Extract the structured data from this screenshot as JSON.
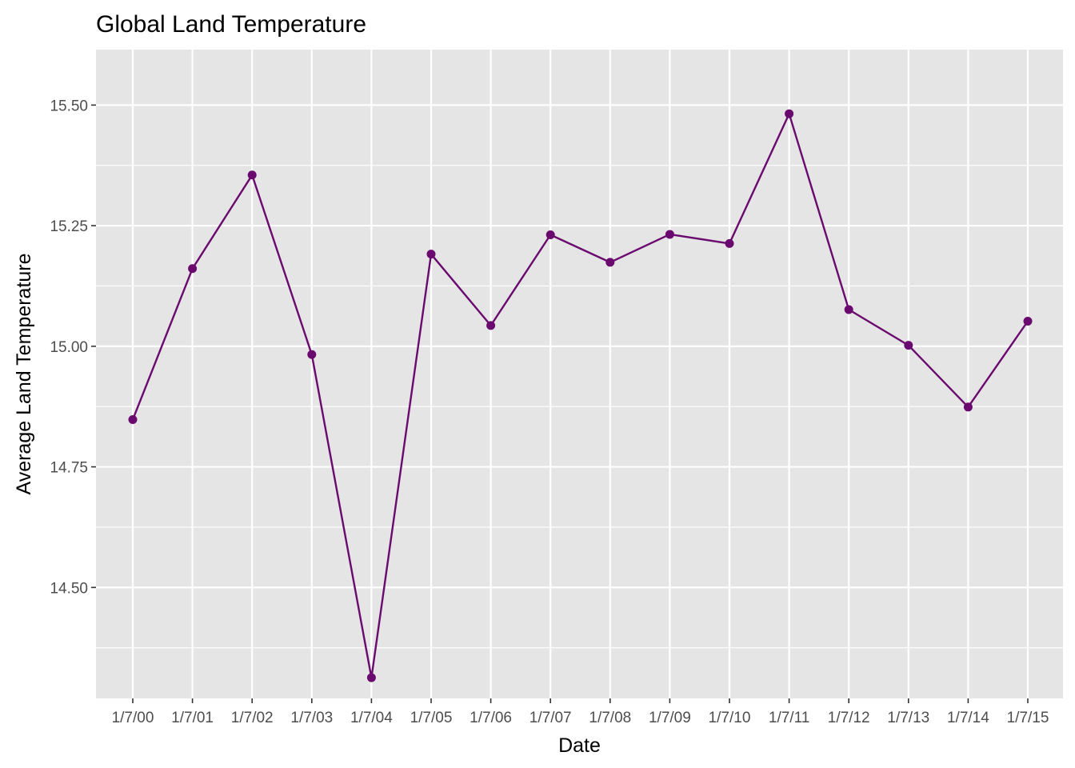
{
  "chart_data": {
    "type": "line",
    "title": "Global Land Temperature",
    "xlabel": "Date",
    "ylabel": "Average Land Temperature",
    "categories": [
      "1/7/00",
      "1/7/01",
      "1/7/02",
      "1/7/03",
      "1/7/04",
      "1/7/05",
      "1/7/06",
      "1/7/07",
      "1/7/08",
      "1/7/09",
      "1/7/10",
      "1/7/11",
      "1/7/12",
      "1/7/13",
      "1/7/14",
      "1/7/15"
    ],
    "values": [
      14.848,
      15.161,
      15.355,
      14.983,
      14.313,
      15.191,
      15.043,
      15.231,
      15.174,
      15.232,
      15.213,
      15.482,
      15.076,
      15.002,
      14.874,
      15.052
    ],
    "ylim": [
      14.27,
      15.615
    ],
    "yticks": [
      "14.50",
      "14.75",
      "15.00",
      "15.25",
      "15.50"
    ],
    "grid": true,
    "legend": "none",
    "colors": {
      "panel": "#e5e5e5",
      "grid": "#ffffff",
      "line": "#6a0a6e",
      "point": "#6a0a6e"
    }
  }
}
